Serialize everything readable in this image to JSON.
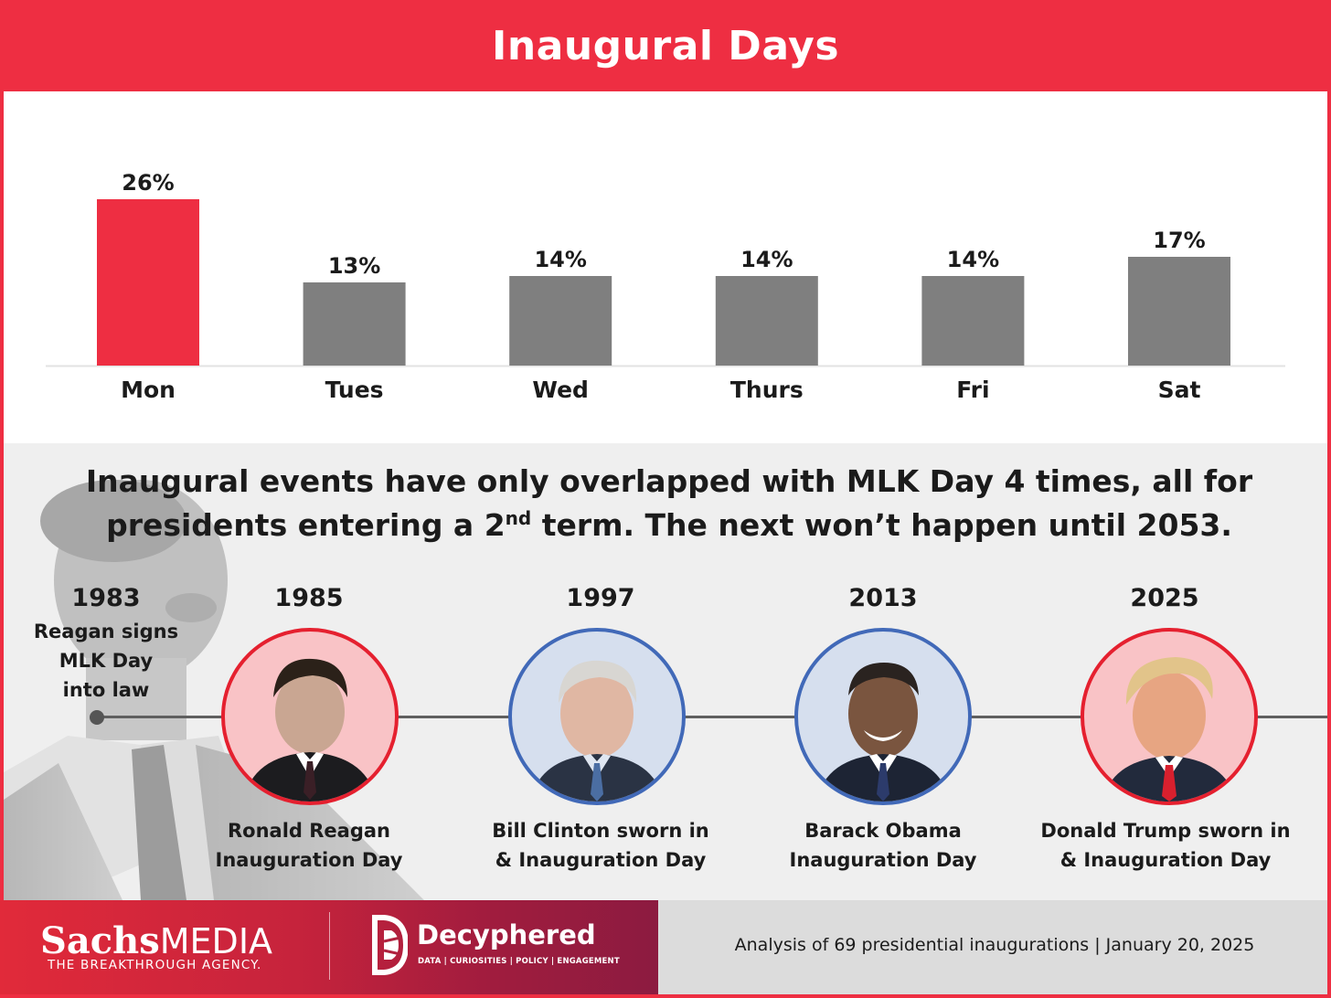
{
  "title": "Inaugural Days",
  "chart_data": {
    "type": "bar",
    "title": "Inaugural Days",
    "categories": [
      "Mon",
      "Tues",
      "Wed",
      "Thurs",
      "Fri",
      "Sat"
    ],
    "values": [
      26,
      13,
      14,
      14,
      14,
      17
    ],
    "value_labels": [
      "26%",
      "13%",
      "14%",
      "14%",
      "14%",
      "17%"
    ],
    "unit": "%",
    "highlight_color": "#ee2e42",
    "bar_color": "#7f7f7f",
    "highlighted_category": "Mon",
    "grid": false,
    "ylim": [
      0,
      26
    ]
  },
  "headline": {
    "line1": "Inaugural events have only overlapped with MLK Day 4 times, all for",
    "line2_pre": "presidents entering a 2",
    "line2_sup": "nd",
    "line2_post": " term. The next won’t happen until 2053."
  },
  "timeline": {
    "first": {
      "year": "1983",
      "note_lines": [
        "Reagan signs",
        "MLK Day",
        "into law"
      ]
    },
    "events": [
      {
        "year": "1985",
        "caption_lines": [
          "Ronald Reagan",
          "Inauguration Day"
        ],
        "ring": "red"
      },
      {
        "year": "1997",
        "caption_lines": [
          "Bill Clinton sworn in",
          "& Inauguration Day"
        ],
        "ring": "blue"
      },
      {
        "year": "2013",
        "caption_lines": [
          "Barack Obama",
          "Inauguration Day"
        ],
        "ring": "blue"
      },
      {
        "year": "2025",
        "caption_lines": [
          "Donald Trump sworn in",
          "& Inauguration Day"
        ],
        "ring": "red"
      }
    ]
  },
  "footer": {
    "sachs_bold": "Sachs",
    "sachs_light": "MEDIA",
    "sachs_tagline": "THE BREAKTHROUGH AGENCY.",
    "decyphered_name": "Decyphered",
    "decyphered_tagline": "DATA | CURIOSITIES | POLICY | ENGAGEMENT",
    "source": "Analysis of 69 presidential inaugurations | January 20, 2025"
  },
  "colors": {
    "brand_red": "#ee2e42",
    "ring_red": "#e5202f",
    "ring_blue": "#4169b8",
    "bar_gray": "#7f7f7f"
  }
}
